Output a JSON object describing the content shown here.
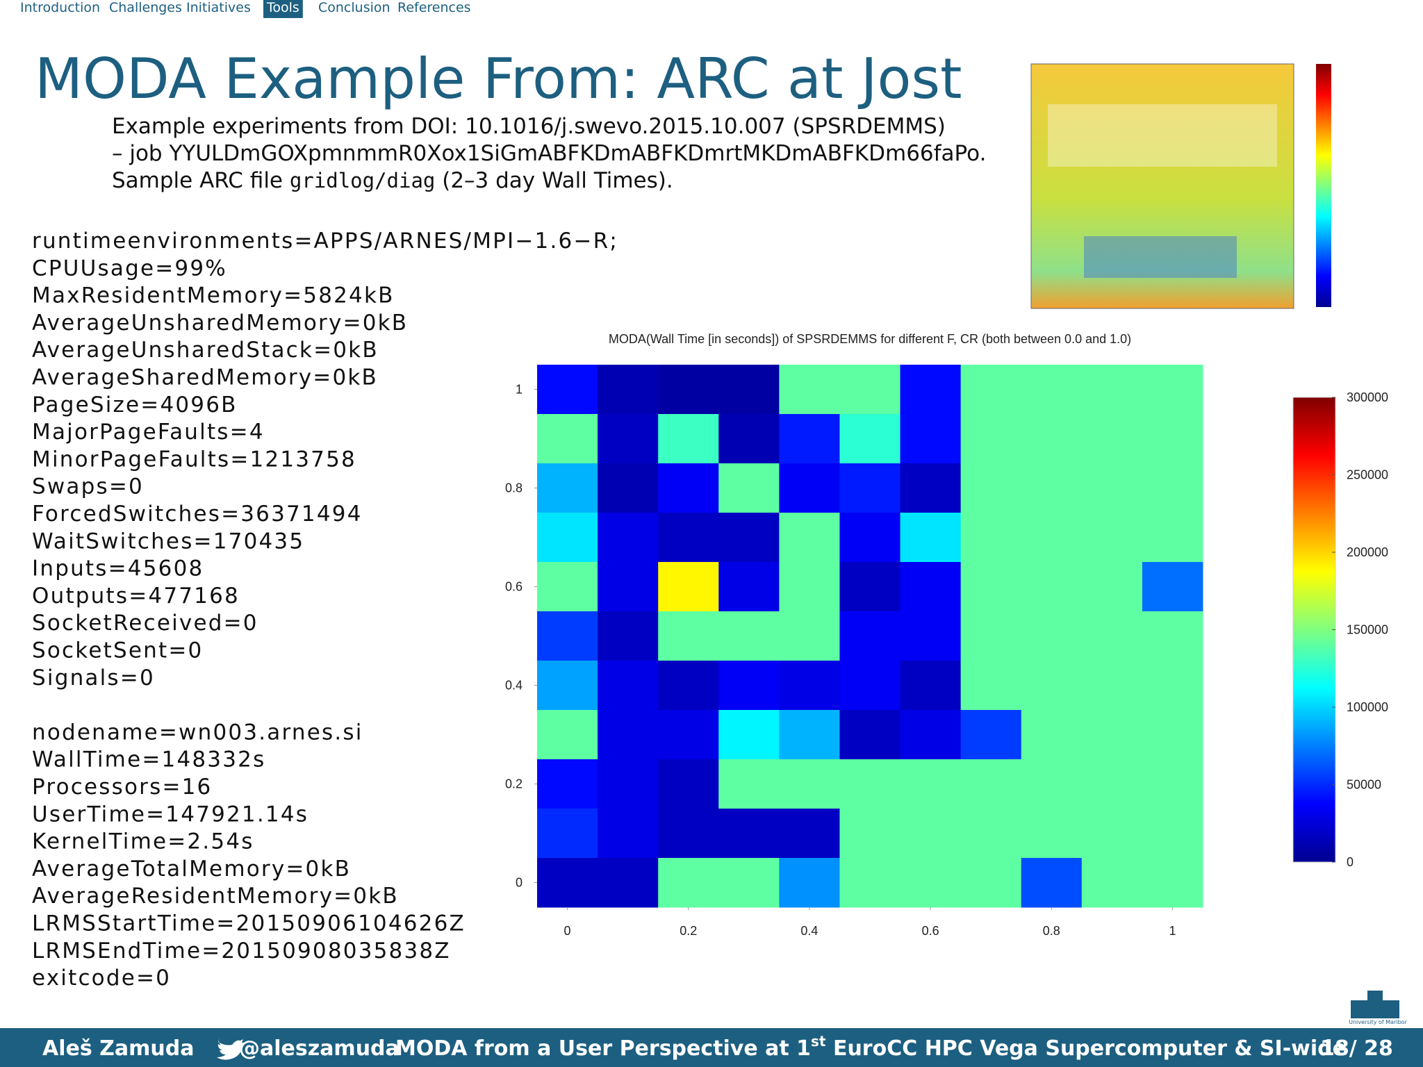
{
  "nav": {
    "items": [
      "Introduction",
      "Challenges",
      "Initiatives",
      "Tools",
      "Conclusion",
      "References"
    ],
    "active": 3
  },
  "title": "MODA Example From: ARC at Jost",
  "subtitle": {
    "line1": "Example experiments from DOI: 10.1016/j.swevo.2015.10.007 (SPSRDEMMS)",
    "line2": "– job YYULDmGOXpmnmmR0Xox1SiGmABFKDmABFKDmrtMKDmABFKDm66faPo.",
    "line3": [
      "Sample ARC file ",
      "gridlog/diag",
      " (2–3 day Wall Times)."
    ]
  },
  "job_info": {
    "group1": [
      "runtimeenvironments=APPS/ARNES/MPI−1.6−R;",
      "CPUUsage=99%",
      "MaxResidentMemory=5824kB",
      "AverageUnsharedMemory=0kB",
      "AverageUnsharedStack=0kB",
      "AverageSharedMemory=0kB",
      "PageSize=4096B",
      "MajorPageFaults=4",
      "MinorPageFaults=1213758",
      "Swaps=0",
      "ForcedSwitches=36371494",
      "WaitSwitches=170435",
      "Inputs=45608",
      "Outputs=477168",
      "SocketReceived=0",
      "SocketSent=0",
      "Signals=0"
    ],
    "group2": [
      "nodename=wn003.arnes.si",
      "WallTime=148332s",
      "Processors=16",
      "UserTime=147921.14s",
      "KernelTime=2.54s",
      "AverageTotalMemory=0kB",
      "AverageResidentMemory=0kB",
      "LRMSStartTime=20150906104626Z",
      "LRMSEndTime=20150908035838Z",
      "exitcode=0"
    ]
  },
  "chart_data": {
    "type": "heatmap",
    "title": "MODA(Wall Time [in seconds]) of SPSRDEMMS for different F, CR (both between 0.0 and 1.0)",
    "colormap": "jet",
    "x": [
      0,
      0.1,
      0.2,
      0.3,
      0.4,
      0.5,
      0.6,
      0.7,
      0.8,
      0.9,
      1
    ],
    "y": [
      1,
      0.9,
      0.8,
      0.7,
      0.6,
      0.5,
      0.4,
      0.3,
      0.2,
      0.1,
      0
    ],
    "z": [
      [
        40000,
        15000,
        10000,
        10000,
        140000,
        140000,
        40000,
        140000,
        140000,
        140000,
        140000
      ],
      [
        140000,
        20000,
        130000,
        15000,
        45000,
        125000,
        40000,
        140000,
        140000,
        140000,
        140000
      ],
      [
        90000,
        15000,
        35000,
        140000,
        35000,
        45000,
        20000,
        140000,
        140000,
        140000,
        140000
      ],
      [
        105000,
        30000,
        20000,
        20000,
        140000,
        35000,
        105000,
        140000,
        140000,
        140000,
        140000
      ],
      [
        140000,
        30000,
        190000,
        30000,
        140000,
        20000,
        35000,
        140000,
        140000,
        140000,
        70000
      ],
      [
        55000,
        20000,
        140000,
        140000,
        140000,
        35000,
        35000,
        140000,
        140000,
        140000,
        140000
      ],
      [
        85000,
        30000,
        20000,
        35000,
        30000,
        35000,
        20000,
        140000,
        140000,
        140000,
        140000
      ],
      [
        140000,
        30000,
        30000,
        110000,
        90000,
        20000,
        30000,
        55000,
        140000,
        140000,
        140000
      ],
      [
        40000,
        30000,
        20000,
        140000,
        140000,
        140000,
        140000,
        140000,
        140000,
        140000,
        140000
      ],
      [
        50000,
        30000,
        20000,
        20000,
        20000,
        140000,
        140000,
        140000,
        140000,
        140000,
        140000
      ],
      [
        20000,
        20000,
        140000,
        140000,
        80000,
        140000,
        140000,
        140000,
        60000,
        140000,
        140000
      ]
    ],
    "xlim": [
      -0.05,
      1.05
    ],
    "ylim": [
      -0.05,
      1.05
    ],
    "xticks": [
      0,
      0.2,
      0.4,
      0.6,
      0.8,
      1
    ],
    "yticks": [
      0,
      0.2,
      0.4,
      0.6,
      0.8,
      1
    ],
    "clim": [
      0,
      300000
    ],
    "cticks": [
      0,
      50000,
      100000,
      150000,
      200000,
      250000,
      300000
    ]
  },
  "footer": {
    "author": "Aleš Zamuda",
    "handle": "@aleszamuda",
    "talk": [
      "MODA from a User Perspective at 1",
      "st",
      " EuroCC HPC Vega Supercomputer & SI-wide"
    ],
    "page": "18/ 28"
  },
  "logo": "University of Maribor"
}
